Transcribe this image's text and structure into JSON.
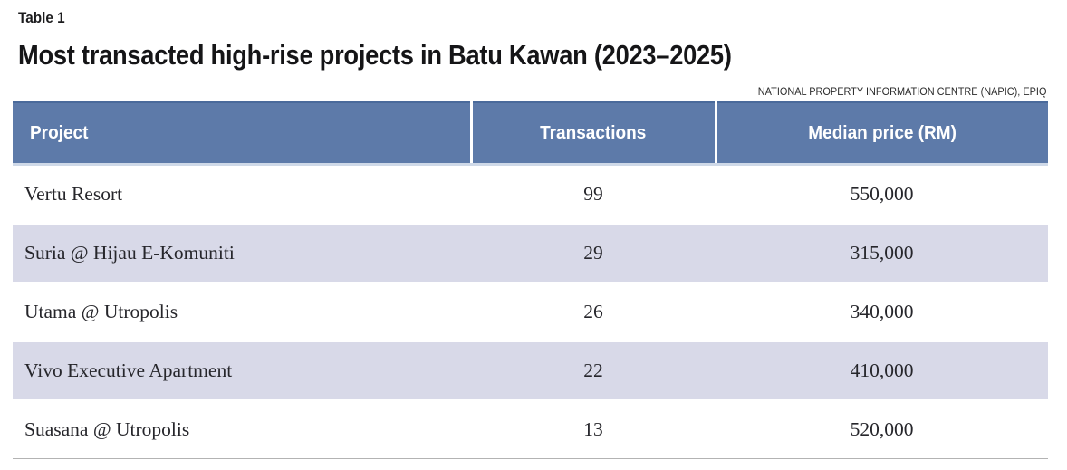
{
  "header": {
    "table_label": "Table 1",
    "title": "Most transacted high-rise projects in Batu Kawan (2023–2025)",
    "source": "NATIONAL PROPERTY INFORMATION CENTRE (NAPIC), EPIQ"
  },
  "table": {
    "columns": [
      "Project",
      "Transactions",
      "Median price (RM)"
    ],
    "rows": [
      {
        "project": "Vertu Resort",
        "transactions": "99",
        "median_price": "550,000"
      },
      {
        "project": "Suria @ Hijau E-Komuniti",
        "transactions": "29",
        "median_price": "315,000"
      },
      {
        "project": "Utama @ Utropolis",
        "transactions": "26",
        "median_price": "340,000"
      },
      {
        "project": "Vivo Executive Apartment",
        "transactions": "22",
        "median_price": "410,000"
      },
      {
        "project": "Suasana @ Utropolis",
        "transactions": "13",
        "median_price": "520,000"
      }
    ]
  },
  "colors": {
    "header_background": "#5d7aa9",
    "header_top_border": "#4a6a9b",
    "header_bottom_strip": "#cfd9e8",
    "row_alternate": "#d8d9e8",
    "bottom_rule": "#b3b3b3",
    "title_text": "#151517",
    "body_text": "#26262b",
    "header_text": "#ffffff"
  },
  "chart_data": {
    "type": "table",
    "title": "Most transacted high-rise projects in Batu Kawan (2023–2025)",
    "source": "NATIONAL PROPERTY INFORMATION CENTRE (NAPIC), EPIQ",
    "columns": [
      "Project",
      "Transactions",
      "Median price (RM)"
    ],
    "rows": [
      [
        "Vertu Resort",
        99,
        550000
      ],
      [
        "Suria @ Hijau E-Komuniti",
        29,
        315000
      ],
      [
        "Utama @ Utropolis",
        26,
        340000
      ],
      [
        "Vivo Executive Apartment",
        22,
        410000
      ],
      [
        "Suasana @ Utropolis",
        13,
        520000
      ]
    ]
  }
}
